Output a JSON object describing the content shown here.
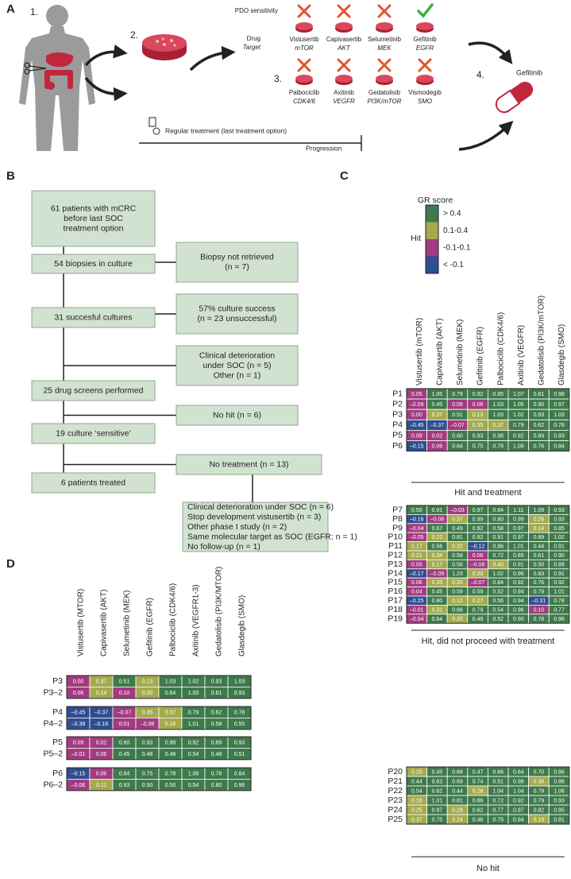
{
  "panel_a": {
    "label": "A",
    "steps": [
      "1.",
      "2.",
      "3.",
      "4."
    ],
    "pdo_sensitivity": "PDO sensitivity",
    "drug": "Drug",
    "target": "Target",
    "drugs": [
      {
        "name": "Vistusertib",
        "target": "mTOR",
        "sensitive": false
      },
      {
        "name": "Capivasertib",
        "target": "AKT",
        "sensitive": false
      },
      {
        "name": "Selumetinib",
        "target": "MEK",
        "sensitive": false
      },
      {
        "name": "Gefitinib",
        "target": "EGFR",
        "sensitive": true
      },
      {
        "name": "Palbociclib",
        "target": "CDK4/6",
        "sensitive": false
      },
      {
        "name": "Axitinib",
        "target": "VEGFR",
        "sensitive": false
      },
      {
        "name": "Gedatolisib",
        "target": "PI3K/mTOR",
        "sensitive": false
      },
      {
        "name": "Vismodegib",
        "target": "SMO",
        "sensitive": false
      }
    ],
    "chosen_drug": "Gefitinib",
    "regular_treatment": "Regular treatment (last treatment option)",
    "progression": "Progression"
  },
  "panel_b": {
    "label": "B",
    "main": [
      {
        "lines": [
          "61 patients with mCRC",
          "before last SOC",
          "treatment option"
        ]
      },
      {
        "lines": [
          "54 biopsies in culture"
        ]
      },
      {
        "lines": [
          "31 succesful cultures"
        ]
      },
      {
        "lines": [
          "25 drug screens performed"
        ]
      },
      {
        "lines": [
          "19 culture ‘sensitive’"
        ]
      },
      {
        "lines": [
          "6 patients treated"
        ]
      }
    ],
    "side": [
      {
        "lines": [
          "Biopsy not retrieved",
          "(n = 7)"
        ]
      },
      {
        "lines": [
          "57% culture success",
          "(n = 23 unsuccessful)"
        ]
      },
      {
        "lines": [
          "Clinical deterioration",
          "under SOC (n = 5)",
          "Other (n = 1)"
        ]
      },
      {
        "lines": [
          "No hit (n = 6)"
        ]
      },
      {
        "lines": [
          "No treatment (n = 13)"
        ]
      },
      {
        "lines": [
          "Clinical deterioration under SOC (n = 6)",
          "Stop development vistusertib (n = 3)",
          "Other phase I study (n = 2)",
          "Same molecular target as SOC (EGFR; n = 1)",
          "No follow-up (n = 1)"
        ]
      }
    ]
  },
  "panel_c": {
    "label": "C",
    "legend": {
      "title": "GR score",
      "label": "Hit",
      "items": [
        {
          "label": "> 0.4",
          "color": "#3e7a4b",
          "lower": 0.4
        },
        {
          "label": "0.1-0.4",
          "color": "#a4ab4d",
          "lower": 0.1
        },
        {
          "label": "-0.1-0.1",
          "color": "#a23b80",
          "lower": -0.1
        },
        {
          "label": "< -0.1",
          "color": "#2f4e8f"
        }
      ]
    },
    "columns": [
      "Vistusertib (mTOR)",
      "Capivasertib (AKT)",
      "Selumetinib (MEK)",
      "Gefitinib (EGFR)",
      "Palbociclib (CDK4/6)",
      "Axitinib (VEGFR)",
      "Gedatolisib (PI3K/mTOR)",
      "Glasdegib (SMO)"
    ],
    "groups": [
      {
        "label": "Hit and treatment",
        "rows": [
          {
            "name": "P1",
            "values": [
              "0.05",
              "1.05",
              "0.79",
              "0.92",
              "0.85",
              "1.07",
              "0.81",
              "0.98"
            ]
          },
          {
            "name": "P2",
            "values": [
              "–0.09",
              "0.45",
              "0.09",
              "0.06",
              "1.03",
              "1.05",
              "0.90",
              "0.97"
            ]
          },
          {
            "name": "P3",
            "values": [
              "0.00",
              "0.37",
              "0.51",
              "0.13",
              "1.03",
              "1.02",
              "0.93",
              "1.03"
            ]
          },
          {
            "name": "P4",
            "values": [
              "–0.45",
              "–0.37",
              "–0.07",
              "0.35",
              "0.37",
              "0.79",
              "0.62",
              "0.78"
            ]
          },
          {
            "name": "P5",
            "values": [
              "0.09",
              "0.02",
              "0.60",
              "0.93",
              "0.98",
              "0.92",
              "0.89",
              "0.93"
            ]
          },
          {
            "name": "P6",
            "values": [
              "–0.15",
              "0.06",
              "0.64",
              "0.75",
              "0.78",
              "1.08",
              "0.76",
              "0.84"
            ]
          }
        ]
      },
      {
        "label": "Hit, did not proceed with treatment",
        "rows": [
          {
            "name": "P7",
            "values": [
              "0.50",
              "0.91",
              "–0.03",
              "0.97",
              "0.84",
              "1.11",
              "1.09",
              "0.93"
            ]
          },
          {
            "name": "P8",
            "values": [
              "–0.16",
              "–0.08",
              "0.37",
              "0.99",
              "0.80",
              "0.99",
              "0.26",
              "0.93"
            ]
          },
          {
            "name": "P9",
            "values": [
              "–0.04",
              "0.67",
              "0.49",
              "0.92",
              "0.58",
              "0.97",
              "0.14",
              "0.85"
            ]
          },
          {
            "name": "P10",
            "values": [
              "–0.05",
              "0.22",
              "0.81",
              "0.82",
              "0.91",
              "0.97",
              "0.89",
              "1.02"
            ]
          },
          {
            "name": "P11",
            "values": [
              "0.17",
              "0.56",
              "0.32",
              "–0.12",
              "0.86",
              "1.01",
              "0.44",
              "0.91"
            ]
          },
          {
            "name": "P12",
            "values": [
              "0.21",
              "0.34",
              "0.58",
              "0.06",
              "0.72",
              "0.85",
              "0.61",
              "0.90"
            ]
          },
          {
            "name": "P13",
            "values": [
              "0.05",
              "0.17",
              "0.56",
              "–0.08",
              "0.40",
              "0.91",
              "0.50",
              "0.89"
            ]
          },
          {
            "name": "P14",
            "values": [
              "–0.17",
              "–0.09",
              "1.23",
              "0.20",
              "1.02",
              "0.96",
              "0.83",
              "0.91"
            ]
          },
          {
            "name": "P15",
            "values": [
              "0.06",
              "0.33",
              "0.20",
              "–0.07",
              "0.84",
              "0.92",
              "0.76",
              "0.92"
            ]
          },
          {
            "name": "P16",
            "values": [
              "0.04",
              "0.45",
              "0.59",
              "0.59",
              "0.52",
              "0.94",
              "0.79",
              "1.01"
            ]
          },
          {
            "name": "P17",
            "values": [
              "–0.25",
              "0.80",
              "0.12",
              "0.27",
              "0.56",
              "0.94",
              "–0.31",
              "0.78"
            ]
          },
          {
            "name": "P18",
            "values": [
              "–0.01",
              "0.31",
              "0.66",
              "0.79",
              "0.54",
              "0.96",
              "0.10",
              "0.77"
            ]
          },
          {
            "name": "P19",
            "values": [
              "–0.04",
              "0.64",
              "0.20",
              "0.49",
              "0.52",
              "0.90",
              "0.78",
              "0.96"
            ]
          }
        ]
      },
      {
        "label": "No hit",
        "rows": [
          {
            "name": "P20",
            "values": [
              "0.20",
              "0.45",
              "0.68",
              "0.47",
              "0.66",
              "0.64",
              "0.70",
              "0.96"
            ]
          },
          {
            "name": "P21",
            "values": [
              "0.44",
              "0.63",
              "0.69",
              "0.74",
              "0.51",
              "0.98",
              "0.38",
              "0.86"
            ]
          },
          {
            "name": "P22",
            "values": [
              "0.54",
              "0.62",
              "0.44",
              "0.28",
              "1.04",
              "1.04",
              "0.79",
              "1.08"
            ]
          },
          {
            "name": "P23",
            "values": [
              "0.18",
              "1.01",
              "0.81",
              "0.86",
              "0.72",
              "0.92",
              "0.79",
              "0.93"
            ]
          },
          {
            "name": "P24",
            "values": [
              "0.25",
              "0.97",
              "0.28",
              "0.62",
              "0.77",
              "0.97",
              "0.82",
              "0.95"
            ]
          },
          {
            "name": "P25",
            "values": [
              "0.37",
              "0.75",
              "0.24",
              "0.46",
              "0.75",
              "0.94",
              "0.19",
              "0.81"
            ]
          }
        ]
      }
    ]
  },
  "panel_d": {
    "label": "D",
    "columns": [
      "Vistusertib (MTOR)",
      "Capivasertib (AKT)",
      "Selumetinib (MEK)",
      "Gefitinib (EGFR)",
      "Palbociclib (CDK4/6)",
      "Axitinib (VEGFR1-3)",
      "Gedatolisib (PI3K/MTOR)",
      "Glasdegib (SMO)"
    ],
    "groups": [
      {
        "rows": [
          {
            "name": "P3",
            "values": [
              "0.00",
              "0.37",
              "0.51",
              "0.13",
              "1.03",
              "1.02",
              "0.93",
              "1.03"
            ]
          },
          {
            "name": "P3–2",
            "values": [
              "0.06",
              "0.14",
              "0.10",
              "0.30",
              "0.64",
              "1.00",
              "0.61",
              "0.93"
            ]
          }
        ]
      },
      {
        "rows": [
          {
            "name": "P4",
            "values": [
              "–0.45",
              "–0.37",
              "–0.07",
              "0.35",
              "0.37",
              "0.79",
              "0.62",
              "0.78"
            ]
          },
          {
            "name": "P4–2",
            "values": [
              "–0.38",
              "–0.16",
              "0.01",
              "–0.06",
              "0.16",
              "1.01",
              "0.58",
              "0.55"
            ]
          }
        ]
      },
      {
        "rows": [
          {
            "name": "P5",
            "values": [
              "0.09",
              "0.02",
              "0.60",
              "0.93",
              "0.98",
              "0.92",
              "0.89",
              "0.93"
            ]
          },
          {
            "name": "P5–2",
            "values": [
              "–0.01",
              "0.06",
              "0.45",
              "0.48",
              "0.48",
              "0.54",
              "0.48",
              "0.51"
            ]
          }
        ]
      },
      {
        "rows": [
          {
            "name": "P6",
            "values": [
              "–0.15",
              "0.06",
              "0.64",
              "0.75",
              "0.78",
              "1.08",
              "0.76",
              "0.84"
            ]
          },
          {
            "name": "P6–2",
            "values": [
              "–0.06",
              "0.11",
              "0.93",
              "0.50",
              "0.56",
              "0.54",
              "0.80",
              "0.96"
            ]
          }
        ]
      }
    ]
  }
}
